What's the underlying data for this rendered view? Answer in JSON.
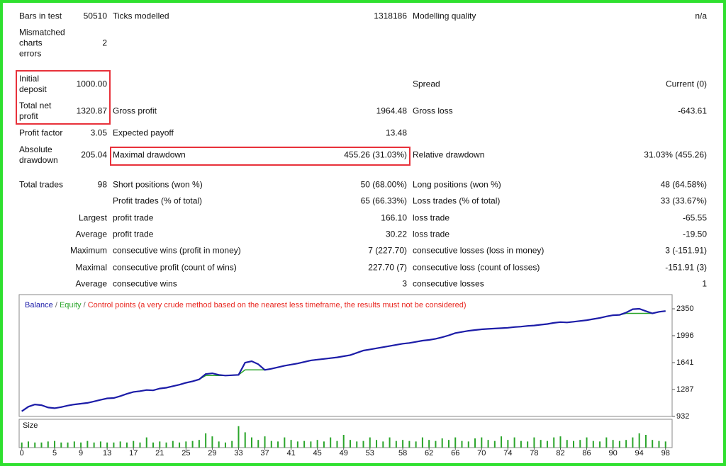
{
  "report": {
    "rows": [
      [
        "Bars in test",
        "50510",
        "Ticks modelled",
        "1318186",
        "Modelling quality",
        "n/a"
      ],
      [
        "Mismatched charts errors",
        "2",
        null,
        null,
        null,
        null
      ],
      [
        "Initial deposit",
        "1000.00",
        null,
        null,
        "Spread",
        "Current (0)"
      ],
      [
        "Total net profit",
        "1320.87",
        "Gross profit",
        "1964.48",
        "Gross loss",
        "-643.61"
      ],
      [
        "Profit factor",
        "3.05",
        "Expected payoff",
        "13.48",
        null,
        null
      ],
      [
        "Absolute drawdown",
        "205.04",
        "Maximal drawdown",
        "455.26 (31.03%)",
        "Relative drawdown",
        "31.03% (455.26)"
      ],
      [
        "Total trades",
        "98",
        "Short positions (won %)",
        "50 (68.00%)",
        "Long positions (won %)",
        "48 (64.58%)"
      ],
      [
        null,
        null,
        "Profit trades (% of total)",
        "65 (66.33%)",
        "Loss trades (% of total)",
        "33 (33.67%)"
      ],
      [
        "Largest",
        null,
        "profit trade",
        "166.10",
        "loss trade",
        "-65.55"
      ],
      [
        "Average",
        null,
        "profit trade",
        "30.22",
        "loss trade",
        "-19.50"
      ],
      [
        "Maximum",
        null,
        "consecutive wins (profit in money)",
        "7 (227.70)",
        "consecutive losses (loss in money)",
        "3 (-151.91)"
      ],
      [
        "Maximal",
        null,
        "consecutive profit (count of wins)",
        "227.70 (7)",
        "consecutive loss (count of losses)",
        "-151.91 (3)"
      ],
      [
        "Average",
        null,
        "consecutive wins",
        "3",
        "consecutive losses",
        "1"
      ]
    ]
  },
  "chart_data": {
    "type": "line",
    "legend_separator": "/",
    "note": {
      "text": "Control points (a very crude method based on the nearest less timeframe, the results must not be considered)",
      "color": "#e8261f"
    },
    "x": [
      0,
      1,
      2,
      3,
      4,
      5,
      6,
      7,
      8,
      9,
      10,
      11,
      12,
      13,
      14,
      15,
      16,
      17,
      18,
      19,
      20,
      21,
      22,
      23,
      24,
      25,
      26,
      27,
      28,
      29,
      30,
      31,
      32,
      33,
      34,
      35,
      36,
      37,
      38,
      39,
      40,
      41,
      42,
      43,
      44,
      45,
      46,
      47,
      48,
      49,
      50,
      51,
      52,
      53,
      54,
      55,
      56,
      57,
      58,
      59,
      60,
      61,
      62,
      63,
      64,
      65,
      66,
      67,
      68,
      69,
      70,
      71,
      72,
      73,
      74,
      75,
      76,
      77,
      78,
      79,
      80,
      81,
      82,
      83,
      84,
      85,
      86,
      87,
      88,
      89,
      90,
      91,
      92,
      93,
      94,
      95,
      96,
      97,
      98
    ],
    "series": [
      {
        "name": "Balance",
        "color": "#1c1ca8",
        "values": [
          1000,
          1060,
          1090,
          1080,
          1050,
          1040,
          1055,
          1075,
          1090,
          1100,
          1110,
          1130,
          1150,
          1170,
          1175,
          1200,
          1230,
          1255,
          1265,
          1280,
          1275,
          1300,
          1310,
          1330,
          1350,
          1375,
          1395,
          1420,
          1490,
          1500,
          1480,
          1470,
          1475,
          1480,
          1640,
          1660,
          1620,
          1545,
          1560,
          1580,
          1600,
          1615,
          1630,
          1650,
          1670,
          1680,
          1690,
          1700,
          1710,
          1725,
          1740,
          1770,
          1800,
          1815,
          1830,
          1845,
          1860,
          1875,
          1890,
          1900,
          1915,
          1930,
          1940,
          1955,
          1975,
          2000,
          2030,
          2045,
          2060,
          2070,
          2080,
          2085,
          2090,
          2095,
          2100,
          2110,
          2115,
          2125,
          2130,
          2140,
          2150,
          2165,
          2175,
          2170,
          2180,
          2190,
          2200,
          2215,
          2230,
          2250,
          2265,
          2270,
          2300,
          2345,
          2350,
          2320,
          2290,
          2310,
          2320.87
        ]
      },
      {
        "name": "Equity",
        "color": "#2aa52a",
        "values": [
          1000,
          1060,
          1090,
          1080,
          1050,
          1040,
          1055,
          1075,
          1090,
          1100,
          1110,
          1130,
          1150,
          1170,
          1175,
          1200,
          1230,
          1255,
          1265,
          1280,
          1275,
          1300,
          1310,
          1330,
          1350,
          1375,
          1395,
          1420,
          1470,
          1470,
          1470,
          1470,
          1475,
          1480,
          1545,
          1545,
          1545,
          1545,
          1560,
          1580,
          1600,
          1615,
          1630,
          1650,
          1670,
          1680,
          1690,
          1700,
          1710,
          1725,
          1740,
          1770,
          1800,
          1815,
          1830,
          1845,
          1860,
          1875,
          1890,
          1900,
          1915,
          1930,
          1940,
          1955,
          1975,
          2000,
          2030,
          2045,
          2060,
          2070,
          2080,
          2085,
          2090,
          2095,
          2100,
          2110,
          2115,
          2125,
          2130,
          2140,
          2150,
          2165,
          2175,
          2170,
          2180,
          2190,
          2200,
          2215,
          2230,
          2250,
          2265,
          2270,
          2290,
          2290,
          2290,
          2290,
          2290,
          2310,
          2320.87
        ]
      }
    ],
    "xlim": [
      -0.4,
      99
    ],
    "xticks": [
      0,
      5,
      9,
      13,
      17,
      21,
      25,
      29,
      33,
      37,
      41,
      45,
      49,
      53,
      58,
      62,
      66,
      70,
      74,
      78,
      82,
      86,
      90,
      94,
      98
    ],
    "ylim": [
      932,
      2537
    ],
    "yticks": [
      932,
      1287,
      1641,
      1996,
      2350
    ],
    "size": {
      "label": "Size",
      "color": "#2aa52a",
      "ylim": [
        0,
        0.5
      ],
      "values": [
        0.1,
        0.12,
        0.1,
        0.1,
        0.12,
        0.13,
        0.1,
        0.1,
        0.12,
        0.1,
        0.13,
        0.1,
        0.12,
        0.1,
        0.1,
        0.12,
        0.1,
        0.13,
        0.1,
        0.2,
        0.1,
        0.12,
        0.1,
        0.13,
        0.1,
        0.12,
        0.13,
        0.15,
        0.28,
        0.22,
        0.12,
        0.1,
        0.13,
        0.42,
        0.3,
        0.2,
        0.15,
        0.22,
        0.13,
        0.12,
        0.2,
        0.15,
        0.12,
        0.13,
        0.12,
        0.15,
        0.12,
        0.2,
        0.13,
        0.25,
        0.15,
        0.12,
        0.13,
        0.2,
        0.15,
        0.12,
        0.2,
        0.13,
        0.15,
        0.13,
        0.12,
        0.2,
        0.15,
        0.13,
        0.18,
        0.15,
        0.2,
        0.13,
        0.12,
        0.18,
        0.2,
        0.15,
        0.13,
        0.22,
        0.15,
        0.2,
        0.13,
        0.12,
        0.2,
        0.15,
        0.13,
        0.2,
        0.22,
        0.15,
        0.13,
        0.15,
        0.2,
        0.13,
        0.12,
        0.2,
        0.15,
        0.13,
        0.15,
        0.2,
        0.28,
        0.25,
        0.15,
        0.13,
        0.12
      ]
    }
  }
}
